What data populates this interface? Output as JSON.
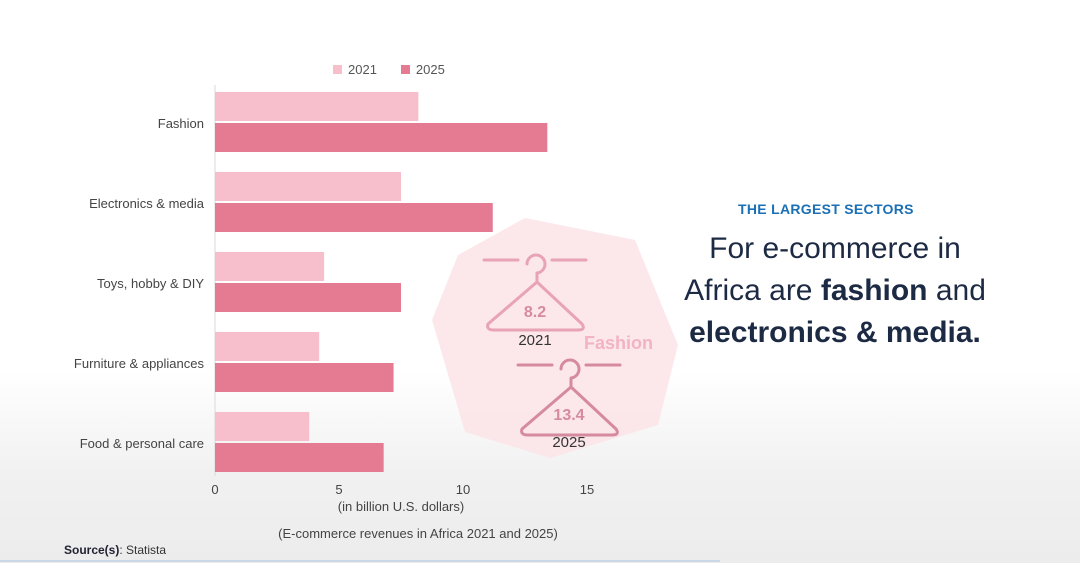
{
  "chart_data": {
    "type": "bar",
    "orientation": "horizontal",
    "categories": [
      "Fashion",
      "Electronics & media",
      "Toys, hobby & DIY",
      "Furniture & appliances",
      "Food & personal care"
    ],
    "series": [
      {
        "name": "2021",
        "values": [
          8.2,
          7.5,
          4.4,
          4.2,
          3.8
        ],
        "color": "#f7bfcc"
      },
      {
        "name": "2025",
        "values": [
          13.4,
          11.2,
          7.5,
          7.2,
          6.8
        ],
        "color": "#e57a93"
      }
    ],
    "xlim": [
      0,
      15
    ],
    "xticks": [
      "0",
      "5",
      "10",
      "15"
    ],
    "xlabel": "(in billion U.S. dollars)",
    "caption": "(E-commerce revenues in Africa 2021 and 2025)",
    "legend_position": "top"
  },
  "source": {
    "label": "Source(s)",
    "text": ": Statista"
  },
  "callout": {
    "value_2021": "8.2",
    "year_2021": "2021",
    "value_2025": "13.4",
    "year_2025": "2025",
    "sector": "Fashion",
    "hanger_color": "#e8a3b4",
    "blob_color": "#fbe4e8"
  },
  "headline": {
    "kicker": "THE LARGEST SECTORS",
    "line1": "For e-commerce in",
    "line2_pre": "Africa are ",
    "line2_bold": "fashion",
    "line2_post": " and",
    "line3_bold": "electronics & media."
  }
}
